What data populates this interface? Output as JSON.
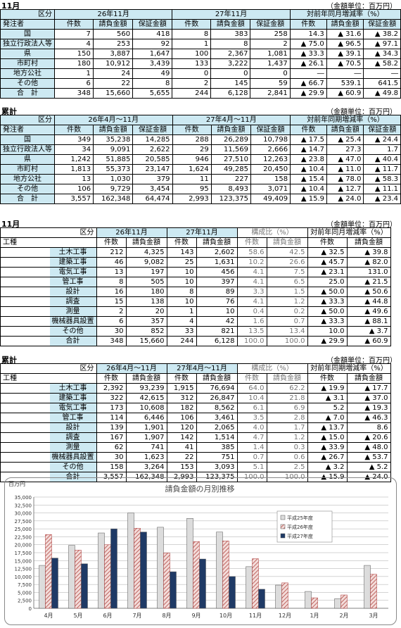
{
  "s1": {
    "title": "11月",
    "unit": "（金額単位：百万円）",
    "h_kubun": "区分",
    "h_issuer": "発注者",
    "h_p1": "26年11月",
    "h_p2": "27年11月",
    "h_p3": "対前年同月増減率（%）",
    "cols": [
      "件数",
      "請負金額",
      "保証金額",
      "件数",
      "請負金額",
      "保証金額",
      "件数",
      "請負金額",
      "保証金額"
    ],
    "rows": [
      [
        "国",
        "7",
        "560",
        "418",
        "8",
        "383",
        "258",
        "14.3",
        "▲ 31.6",
        "▲ 38.2"
      ],
      [
        "独立行政法人等",
        "4",
        "253",
        "92",
        "1",
        "8",
        "2",
        "▲ 75.0",
        "▲ 96.5",
        "▲ 97.1"
      ],
      [
        "県",
        "150",
        "3,887",
        "1,647",
        "100",
        "2,367",
        "1,081",
        "▲ 33.3",
        "▲ 39.1",
        "▲ 34.3"
      ],
      [
        "市町村",
        "180",
        "10,912",
        "3,439",
        "133",
        "3,222",
        "1,437",
        "▲ 26.1",
        "▲ 70.5",
        "▲ 58.2"
      ],
      [
        "地方公社",
        "1",
        "24",
        "49",
        "0",
        "0",
        "0",
        "―",
        "―",
        "―"
      ],
      [
        "その他",
        "6",
        "22",
        "8",
        "2",
        "145",
        "59",
        "▲ 66.7",
        "539.1",
        "641.5"
      ]
    ],
    "total": [
      "合　計",
      "348",
      "15,660",
      "5,655",
      "244",
      "6,128",
      "2,841",
      "▲ 29.9",
      "▲ 60.9",
      "▲ 49.8"
    ]
  },
  "s2": {
    "title": "累計",
    "unit": "（金額単位：百万円）",
    "h_kubun": "区分",
    "h_issuer": "発注者",
    "h_p1": "26年4月～11月",
    "h_p2": "27年4月～11月",
    "h_p3": "対前年同期増減率（%）",
    "cols": [
      "件数",
      "請負金額",
      "保証金額",
      "件数",
      "請負金額",
      "保証金額",
      "件数",
      "請負金額",
      "保証金額"
    ],
    "rows": [
      [
        "国",
        "349",
        "35,238",
        "14,285",
        "288",
        "26,289",
        "10,798",
        "▲ 17.5",
        "▲ 25.4",
        "▲ 24.4"
      ],
      [
        "独立行政法人等",
        "34",
        "9,091",
        "2,622",
        "29",
        "11,569",
        "2,666",
        "▲ 14.7",
        "27.3",
        "1.7"
      ],
      [
        "県",
        "1,242",
        "51,885",
        "20,585",
        "946",
        "27,510",
        "12,263",
        "▲ 23.8",
        "▲ 47.0",
        "▲ 40.4"
      ],
      [
        "市町村",
        "1,813",
        "55,373",
        "23,147",
        "1,624",
        "49,285",
        "20,450",
        "▲ 10.4",
        "▲ 11.0",
        "▲ 11.7"
      ],
      [
        "地方公社",
        "13",
        "1,030",
        "379",
        "11",
        "227",
        "158",
        "▲ 15.4",
        "▲ 78.0",
        "▲ 58.3"
      ],
      [
        "その他",
        "106",
        "9,729",
        "3,454",
        "95",
        "8,493",
        "3,071",
        "▲ 10.4",
        "▲ 12.7",
        "▲ 11.1"
      ]
    ],
    "total": [
      "合　計",
      "3,557",
      "162,348",
      "64,474",
      "2,993",
      "123,375",
      "49,409",
      "▲ 15.9",
      "▲ 24.0",
      "▲ 23.4"
    ]
  },
  "s3": {
    "title": "11月",
    "unit": "（金額単位：百万円）",
    "h_kubun": "区分",
    "h_kind": "工種",
    "h_p1": "26年11月",
    "h_p2": "27年11月",
    "h_p3": "構成比（%）",
    "h_p4": "対前年同月増減率（%）",
    "cols": [
      "件数",
      "請負金額",
      "件数",
      "請負金額",
      "件数",
      "請負金額",
      "件数",
      "請負金額"
    ],
    "rows": [
      [
        "土木工事",
        "212",
        "4,325",
        "143",
        "2,602",
        "58.6",
        "42.5",
        "▲ 32.5",
        "▲ 39.8"
      ],
      [
        "建築工事",
        "46",
        "9,082",
        "25",
        "1,631",
        "10.2",
        "26.6",
        "▲ 45.7",
        "▲ 82.0"
      ],
      [
        "電気工事",
        "13",
        "197",
        "10",
        "456",
        "4.1",
        "7.5",
        "▲ 23.1",
        "131.0"
      ],
      [
        "管工事",
        "8",
        "505",
        "10",
        "397",
        "4.1",
        "6.5",
        "25.0",
        "▲ 21.5"
      ],
      [
        "設計",
        "16",
        "180",
        "8",
        "89",
        "3.3",
        "1.5",
        "▲ 50.0",
        "▲ 50.6"
      ],
      [
        "調査",
        "15",
        "138",
        "10",
        "76",
        "4.1",
        "1.2",
        "▲ 33.3",
        "▲ 44.8"
      ],
      [
        "測量",
        "2",
        "20",
        "1",
        "10",
        "0.4",
        "0.2",
        "▲ 50.0",
        "▲ 49.6"
      ],
      [
        "機械器具設置",
        "6",
        "357",
        "4",
        "42",
        "1.6",
        "0.7",
        "▲ 33.3",
        "▲ 88.1"
      ],
      [
        "その他",
        "30",
        "852",
        "33",
        "821",
        "13.5",
        "13.4",
        "10.0",
        "▲ 3.7"
      ]
    ],
    "total": [
      "合計",
      "348",
      "15,660",
      "244",
      "6,128",
      "100.0",
      "100.0",
      "▲ 29.9",
      "▲ 60.9"
    ]
  },
  "s4": {
    "title": "累計",
    "unit": "（金額単位：百万円）",
    "h_kubun": "区分",
    "h_kind": "工種",
    "h_p1": "26年4月～11月",
    "h_p2": "27年4月～11月",
    "h_p3": "構成比（%）",
    "h_p4": "対前年同期増減率（%）",
    "cols": [
      "件数",
      "請負金額",
      "件数",
      "請負金額",
      "件数",
      "請負金額",
      "件数",
      "請負金額"
    ],
    "rows": [
      [
        "土木工事",
        "2,392",
        "93,239",
        "1,915",
        "76,694",
        "64.0",
        "62.2",
        "▲ 19.9",
        "▲ 17.7"
      ],
      [
        "建築工事",
        "322",
        "42,615",
        "312",
        "26,847",
        "10.4",
        "21.8",
        "▲ 3.1",
        "▲ 37.0"
      ],
      [
        "電気工事",
        "173",
        "10,608",
        "182",
        "8,562",
        "6.1",
        "6.9",
        "5.2",
        "▲ 19.3"
      ],
      [
        "管工事",
        "114",
        "6,446",
        "106",
        "3,461",
        "3.5",
        "2.8",
        "▲ 7.0",
        "▲ 46.3"
      ],
      [
        "設計",
        "139",
        "1,901",
        "120",
        "2,065",
        "4.0",
        "1.7",
        "▲ 13.7",
        "8.6"
      ],
      [
        "調査",
        "167",
        "1,907",
        "142",
        "1,514",
        "4.7",
        "1.2",
        "▲ 15.0",
        "▲ 20.6"
      ],
      [
        "測量",
        "62",
        "741",
        "41",
        "385",
        "1.4",
        "0.3",
        "▲ 33.9",
        "▲ 48.0"
      ],
      [
        "機械器具設置",
        "30",
        "1,623",
        "22",
        "751",
        "0.7",
        "0.6",
        "▲ 26.7",
        "▲ 53.7"
      ],
      [
        "その他",
        "158",
        "3,264",
        "153",
        "3,093",
        "5.1",
        "2.5",
        "▲ 3.2",
        "▲ 5.2"
      ]
    ],
    "total": [
      "合計",
      "3,557",
      "162,348",
      "2,993",
      "123,375",
      "100.0",
      "100.0",
      "▲ 15.9",
      "▲ 24.0"
    ]
  },
  "chart_data": {
    "type": "bar",
    "title": "請負金額の月別推移",
    "ylabel": "百万円",
    "ylim": [
      0,
      35000
    ],
    "yticks": [
      "0",
      "2,500",
      "5,000",
      "7,500",
      "10,000",
      "12,500",
      "15,000",
      "17,500",
      "20,000",
      "22,500",
      "25,000",
      "27,500",
      "30,000",
      "32,500",
      "35,000"
    ],
    "categories": [
      "4月",
      "5月",
      "6月",
      "7月",
      "8月",
      "9月",
      "10月",
      "11月",
      "12月",
      "1月",
      "2月",
      "3月"
    ],
    "series": [
      {
        "name": "平成25年度",
        "color": "#dcdcdc",
        "values": [
          13500,
          19800,
          23700,
          30000,
          25500,
          28300,
          24000,
          13100,
          7300,
          5300,
          3000,
          13500
        ]
      },
      {
        "name": "平成26年度",
        "color": "#d99a96",
        "values": [
          23200,
          18300,
          20000,
          25200,
          17400,
          21000,
          21200,
          15600,
          8000,
          3300,
          4200,
          10700
        ]
      },
      {
        "name": "平成27年度",
        "color": "#1f3a66",
        "values": [
          15800,
          14000,
          25000,
          24000,
          11500,
          15500,
          10000,
          6000,
          null,
          null,
          null,
          null
        ]
      }
    ]
  }
}
